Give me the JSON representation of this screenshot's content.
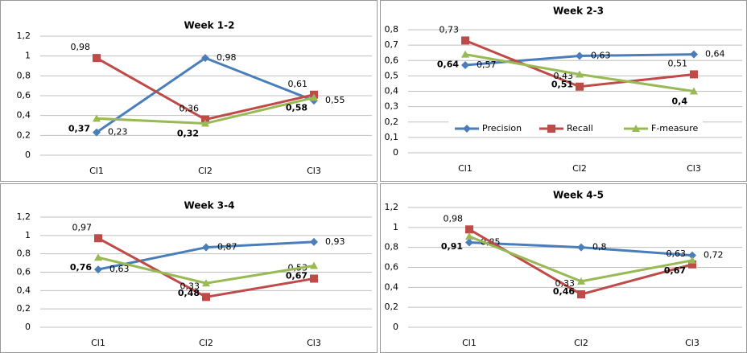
{
  "chart_data": [
    {
      "type": "line",
      "title": "Week 1-2",
      "categories": [
        "Cl1",
        "Cl2",
        "Cl3"
      ],
      "ylim": [
        0,
        1.2
      ],
      "yticks": [
        0,
        {
          "value": 0.2,
          "label": "0,2"
        },
        {
          "value": 0.4,
          "label": "0,4"
        },
        {
          "value": 0.6,
          "label": "0,6"
        },
        {
          "value": 0.8,
          "label": "0,8"
        },
        1,
        {
          "value": 1.2,
          "label": "1,2"
        }
      ],
      "grid": true,
      "series": [
        {
          "color": "#4a7ebb",
          "marker": "diamond",
          "values": [
            0.23,
            0.98,
            0.55
          ],
          "value_labels": [
            "0,23",
            "0,98",
            "0,55"
          ]
        },
        {
          "color": "#be4b48",
          "marker": "square",
          "values": [
            0.98,
            0.36,
            0.61
          ],
          "value_labels": [
            "0,98",
            "0,36",
            "0,61"
          ]
        },
        {
          "color": "#98b954",
          "marker": "triangle",
          "label_weight": "bold",
          "values": [
            0.37,
            0.32,
            0.58
          ],
          "value_labels": [
            "0,37",
            "0,32",
            "0,58"
          ]
        }
      ]
    },
    {
      "type": "line",
      "title": "Week 2-3",
      "categories": [
        "Cl1",
        "Cl2",
        "Cl3"
      ],
      "ylim": [
        0,
        0.8
      ],
      "yticks": [
        0,
        {
          "value": 0.1,
          "label": "0,1"
        },
        {
          "value": 0.2,
          "label": "0,2"
        },
        {
          "value": 0.3,
          "label": "0,3"
        },
        {
          "value": 0.4,
          "label": "0,4"
        },
        {
          "value": 0.5,
          "label": "0,5"
        },
        {
          "value": 0.6,
          "label": "0,6"
        },
        {
          "value": 0.7,
          "label": "0,7"
        },
        {
          "value": 0.8,
          "label": "0,8"
        }
      ],
      "grid": true,
      "legend": "bottom",
      "series": [
        {
          "name": "Precision",
          "color": "#4a7ebb",
          "marker": "diamond",
          "values": [
            0.57,
            0.63,
            0.64
          ],
          "value_labels": [
            "0,57",
            "0,63",
            "0,64"
          ]
        },
        {
          "name": "Recall",
          "color": "#be4b48",
          "marker": "square",
          "values": [
            0.73,
            0.43,
            0.51
          ],
          "value_labels": [
            "0,73",
            "0,43",
            "0,51"
          ]
        },
        {
          "name": "F-measure",
          "color": "#98b954",
          "marker": "triangle",
          "label_weight": "bold",
          "values": [
            0.64,
            0.51,
            0.4
          ],
          "value_labels": [
            "0,64",
            "0,51",
            "0,4"
          ]
        }
      ]
    },
    {
      "type": "line",
      "title": "Week 3-4",
      "categories": [
        "Cl1",
        "Cl2",
        "Cl3"
      ],
      "ylim": [
        0,
        1.2
      ],
      "yticks": [
        0,
        {
          "value": 0.2,
          "label": "0,2"
        },
        {
          "value": 0.4,
          "label": "0,4"
        },
        {
          "value": 0.6,
          "label": "0,6"
        },
        {
          "value": 0.8,
          "label": "0,8"
        },
        1,
        {
          "value": 1.2,
          "label": "1,2"
        }
      ],
      "grid": true,
      "series": [
        {
          "color": "#4a7ebb",
          "marker": "diamond",
          "values": [
            0.63,
            0.87,
            0.93
          ],
          "value_labels": [
            "0,63",
            "0,87",
            "0,93"
          ]
        },
        {
          "color": "#be4b48",
          "marker": "square",
          "values": [
            0.97,
            0.33,
            0.53
          ],
          "value_labels": [
            "0,97",
            "0,33",
            "0,53"
          ]
        },
        {
          "color": "#98b954",
          "marker": "triangle",
          "label_weight": "bold",
          "values": [
            0.76,
            0.48,
            0.67
          ],
          "value_labels": [
            "0,76",
            "0,48",
            "0,67"
          ]
        }
      ]
    },
    {
      "type": "line",
      "title": "Week 4-5",
      "categories": [
        "Cl1",
        "Cl2",
        "Cl3"
      ],
      "ylim": [
        0,
        1.2
      ],
      "yticks": [
        0,
        {
          "value": 0.2,
          "label": "0,2"
        },
        {
          "value": 0.4,
          "label": "0,4"
        },
        {
          "value": 0.6,
          "label": "0,6"
        },
        {
          "value": 0.8,
          "label": "0,8"
        },
        1,
        {
          "value": 1.2,
          "label": "1,2"
        }
      ],
      "grid": true,
      "series": [
        {
          "color": "#4a7ebb",
          "marker": "diamond",
          "values": [
            0.85,
            0.8,
            0.72
          ],
          "value_labels": [
            "0,85",
            "0,8",
            "0,72"
          ]
        },
        {
          "color": "#be4b48",
          "marker": "square",
          "values": [
            0.98,
            0.33,
            0.63
          ],
          "value_labels": [
            "0,98",
            "0,33",
            "0,63"
          ]
        },
        {
          "color": "#98b954",
          "marker": "triangle",
          "label_weight": "bold",
          "values": [
            0.91,
            0.46,
            0.67
          ],
          "value_labels": [
            "0,91",
            "0,46",
            "0,67"
          ]
        }
      ]
    }
  ]
}
